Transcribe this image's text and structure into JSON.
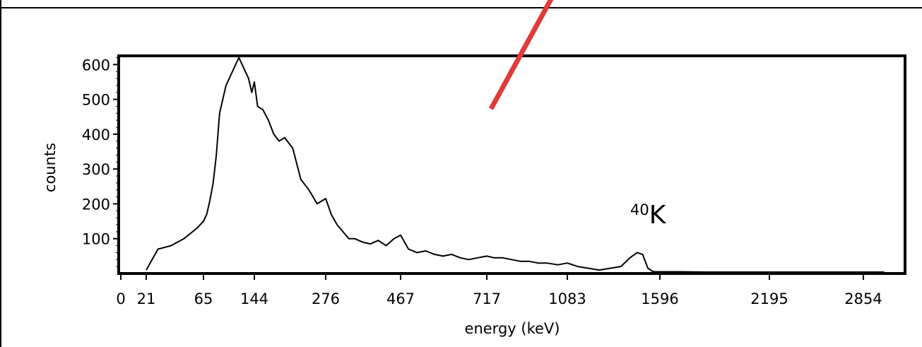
{
  "chart_data": {
    "type": "line",
    "title": "",
    "xlabel": "energy (keV)",
    "ylabel": "counts",
    "x_tick_labels": [
      "0",
      "21",
      "65",
      "144",
      "276",
      "467",
      "717",
      "1083",
      "1596",
      "2195",
      "2854"
    ],
    "y_tick_labels": [
      "100",
      "200",
      "300",
      "400",
      "500",
      "600"
    ],
    "y_ticks": [
      100,
      200,
      300,
      400,
      500,
      600
    ],
    "ylim": [
      0,
      625
    ],
    "x_axis_scale": "quadratic (channel index, energy labels nonlinear)",
    "grid": false,
    "legend": "none",
    "series": [
      {
        "color": "#000000",
        "x": [
          21,
          30,
          40,
          50,
          60,
          65,
          70,
          75,
          80,
          85,
          90,
          95,
          100,
          105,
          110,
          115,
          120,
          125,
          130,
          135,
          140,
          144,
          150,
          160,
          170,
          180,
          190,
          200,
          215,
          230,
          245,
          260,
          276,
          290,
          305,
          320,
          335,
          350,
          370,
          390,
          410,
          430,
          450,
          467,
          490,
          515,
          540,
          565,
          590,
          615,
          640,
          665,
          690,
          717,
          750,
          790,
          830,
          870,
          910,
          950,
          990,
          1040,
          1083,
          1140,
          1200,
          1260,
          1320,
          1380,
          1430,
          1470,
          1500,
          1530,
          1560,
          1596,
          1700,
          1850,
          2000,
          2195,
          2400,
          2600,
          2854,
          3000
        ],
        "y": [
          10,
          70,
          80,
          100,
          130,
          150,
          170,
          210,
          260,
          340,
          460,
          500,
          540,
          560,
          580,
          600,
          620,
          600,
          580,
          560,
          520,
          550,
          480,
          470,
          440,
          400,
          380,
          390,
          360,
          270,
          240,
          200,
          215,
          170,
          140,
          120,
          100,
          100,
          90,
          85,
          95,
          80,
          100,
          110,
          70,
          60,
          65,
          55,
          50,
          55,
          45,
          40,
          45,
          50,
          45,
          45,
          40,
          35,
          35,
          30,
          30,
          25,
          30,
          20,
          15,
          10,
          15,
          20,
          45,
          60,
          55,
          15,
          5,
          5,
          5,
          3,
          3,
          3,
          3,
          3,
          3,
          3
        ]
      }
    ],
    "annotations": [
      {
        "text": "K",
        "superscript": "40"
      }
    ],
    "overlay": {
      "type": "arrow-line",
      "color": "#e03a3a"
    }
  }
}
